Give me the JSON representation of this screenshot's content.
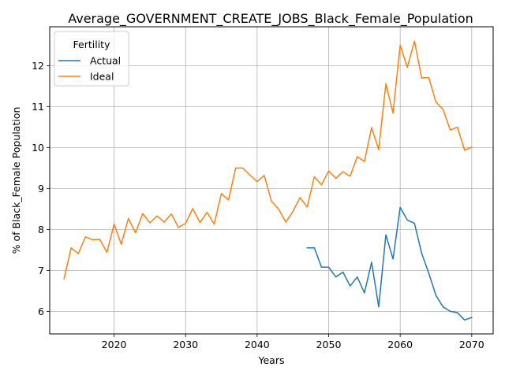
{
  "chart_data": {
    "type": "line",
    "title": "Average_GOVERNMENT_CREATE_JOBS_Black_Female_Population",
    "xlabel": "Years",
    "ylabel": "% of Black_Female Population",
    "xlim": [
      2011,
      2073
    ],
    "ylim": [
      5.45,
      12.95
    ],
    "xticks": [
      2020,
      2030,
      2040,
      2050,
      2060,
      2070
    ],
    "yticks": [
      6,
      7,
      8,
      9,
      10,
      11,
      12
    ],
    "grid": true,
    "legend": {
      "title": "Fertility",
      "placement": "top-left"
    },
    "series": [
      {
        "name": "Actual",
        "color": "#1f77b4",
        "x": [
          2047,
          2048,
          2049,
          2050,
          2051,
          2052,
          2053,
          2054,
          2055,
          2056,
          2057,
          2058,
          2059,
          2060,
          2061,
          2062,
          2063,
          2064,
          2065,
          2066,
          2067,
          2068,
          2069,
          2070
        ],
        "values": [
          7.55,
          7.55,
          7.08,
          7.08,
          6.84,
          6.96,
          6.62,
          6.84,
          6.45,
          7.2,
          6.11,
          7.87,
          7.28,
          8.54,
          8.23,
          8.15,
          7.42,
          6.93,
          6.39,
          6.11,
          6.0,
          5.97,
          5.79,
          5.85
        ]
      },
      {
        "name": "Ideal",
        "color": "#ff7f0e",
        "x": [
          2013,
          2014,
          2015,
          2016,
          2017,
          2018,
          2019,
          2020,
          2021,
          2022,
          2023,
          2024,
          2025,
          2026,
          2027,
          2028,
          2029,
          2030,
          2031,
          2032,
          2033,
          2034,
          2035,
          2036,
          2037,
          2038,
          2039,
          2040,
          2041,
          2042,
          2043,
          2044,
          2045,
          2046,
          2047,
          2048,
          2049,
          2050,
          2051,
          2052,
          2053,
          2054,
          2055,
          2056,
          2057,
          2058,
          2059,
          2060,
          2061,
          2062,
          2063,
          2064,
          2065,
          2066,
          2067,
          2068,
          2069,
          2070
        ],
        "values": [
          6.8,
          7.55,
          7.41,
          7.82,
          7.75,
          7.76,
          7.44,
          8.13,
          7.64,
          8.27,
          7.92,
          8.39,
          8.16,
          8.33,
          8.18,
          8.38,
          8.05,
          8.15,
          8.51,
          8.17,
          8.42,
          8.13,
          8.88,
          8.72,
          9.5,
          9.5,
          9.33,
          9.17,
          9.32,
          8.69,
          8.5,
          8.18,
          8.44,
          8.78,
          8.55,
          9.29,
          9.09,
          9.43,
          9.25,
          9.41,
          9.3,
          9.78,
          9.66,
          10.49,
          9.95,
          11.56,
          10.84,
          12.5,
          11.96,
          12.6,
          11.7,
          11.71,
          11.11,
          10.93,
          10.43,
          10.5,
          9.94,
          10.01
        ]
      }
    ]
  }
}
